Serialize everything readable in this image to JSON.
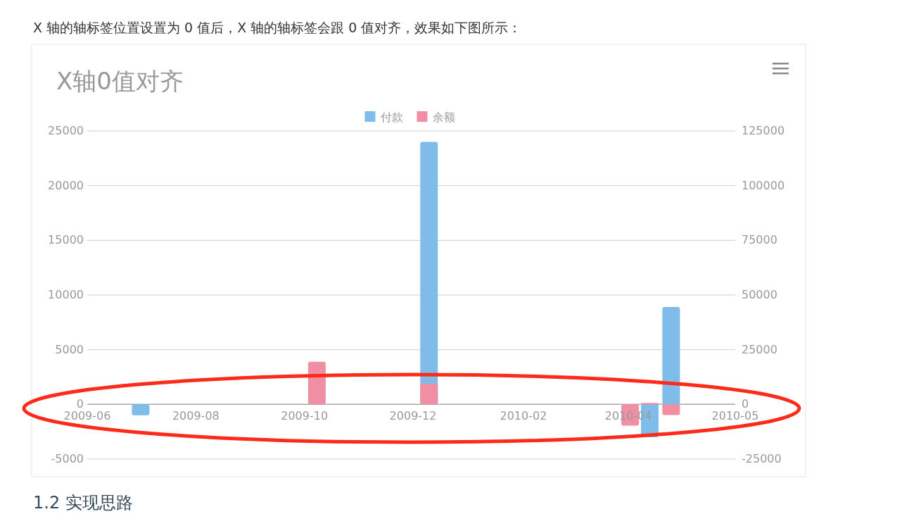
{
  "chart_data": {
    "type": "bar",
    "title": "X轴0值对齐",
    "annotations": [
      "X 轴的轴标签位置设置为 0 值后，X 轴的轴标签会跟 0 值对齐，效果如下图所示：",
      "1.2 实现思路"
    ],
    "xlim": [
      "2009-06-01",
      "2010-05-31"
    ],
    "xticks": [
      {
        "value": "2009-06-01",
        "label": "2009-06"
      },
      {
        "value": "2009-08-01",
        "label": "2009-08"
      },
      {
        "value": "2009-10-01",
        "label": "2009-10"
      },
      {
        "value": "2009-12-01",
        "label": "2009-12"
      },
      {
        "value": "2010-02-01",
        "label": "2010-02"
      },
      {
        "value": "2010-04-01",
        "label": "2010-04"
      },
      {
        "value": "2010-05-31",
        "label": "2010-05"
      }
    ],
    "ylim": [
      -5000,
      25000
    ],
    "yticks": [
      -5000,
      0,
      5000,
      10000,
      15000,
      20000,
      25000
    ],
    "y2lim": [
      -25000,
      125000
    ],
    "y2ticks": [
      -25000,
      0,
      25000,
      50000,
      75000,
      100000,
      125000
    ],
    "grid": "y",
    "legend": "top",
    "series": [
      {
        "name": "付款",
        "color": "#7fbce9",
        "x": [
          "2009-07-01",
          "2009-12-10",
          "2010-04-13",
          "2010-04-25"
        ],
        "values": [
          -1000,
          24000,
          -3000,
          8900
        ]
      },
      {
        "name": "余额",
        "color": "#f08fa3",
        "axis": "y2",
        "x": [
          "2009-10-08",
          "2009-12-10",
          "2010-04-02",
          "2010-04-13",
          "2010-04-25"
        ],
        "values": [
          19500,
          9500,
          -9700,
          700,
          -4900
        ]
      }
    ]
  }
}
